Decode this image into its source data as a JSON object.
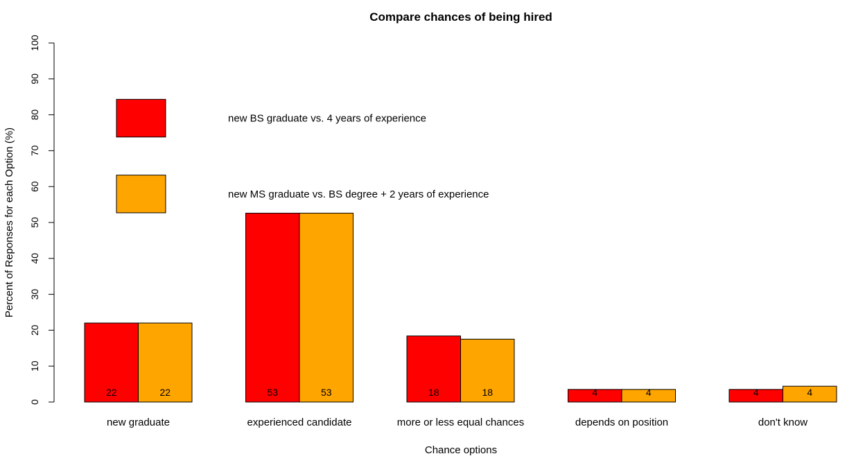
{
  "chart_data": {
    "type": "bar",
    "title": "Compare chances of being hired",
    "xlabel": "Chance options",
    "ylabel": "Percent of Reponses for each Option (%)",
    "ylim": [
      0,
      100
    ],
    "yticks": [
      0,
      10,
      20,
      30,
      40,
      50,
      60,
      70,
      80,
      90,
      100
    ],
    "grid": false,
    "legend_position": "top-left",
    "categories": [
      "new graduate",
      "experienced candidate",
      "more or less equal chances",
      "depends on position",
      "don't know"
    ],
    "series": [
      {
        "name": "new BS graduate vs. 4 years of experience",
        "color": "#ff0000",
        "values": [
          22,
          52.6,
          18.4,
          3.5,
          3.5
        ],
        "labels": [
          "22",
          "53",
          "18",
          "4",
          "4"
        ]
      },
      {
        "name": "new MS graduate vs. BS degree + 2 years of experience",
        "color": "#ffa500",
        "values": [
          22,
          52.6,
          17.5,
          3.5,
          4.4
        ],
        "labels": [
          "22",
          "53",
          "18",
          "4",
          "4"
        ]
      }
    ]
  }
}
